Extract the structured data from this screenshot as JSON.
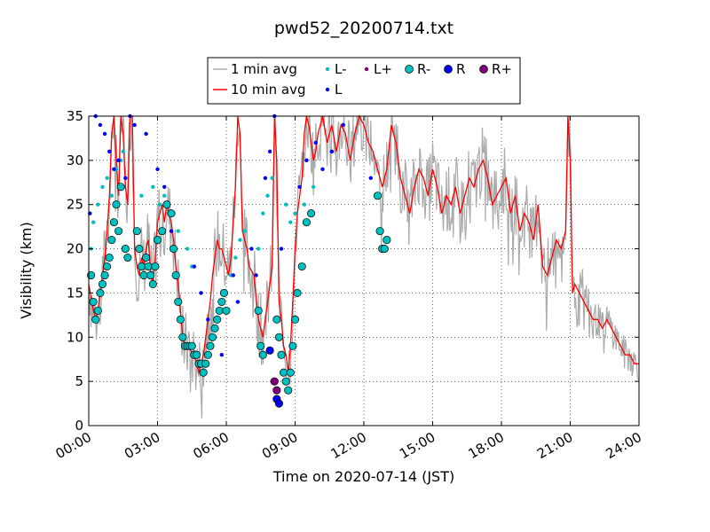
{
  "chart_data": {
    "type": "line",
    "title": "pwd52_20200714.txt",
    "xlabel": "Time on 2020-07-14 (JST)",
    "ylabel": "Visibility (km)",
    "xlim": [
      0,
      24
    ],
    "ylim": [
      0,
      35
    ],
    "x_tick_values": [
      0,
      3,
      6,
      9,
      12,
      15,
      18,
      21,
      24
    ],
    "x_tick_labels": [
      "00:00",
      "03:00",
      "06:00",
      "09:00",
      "12:00",
      "15:00",
      "18:00",
      "21:00",
      "24:00"
    ],
    "y_ticks": [
      0,
      5,
      10,
      15,
      20,
      25,
      30,
      35
    ],
    "grid": true,
    "legend_position": "top-center",
    "legend": [
      {
        "label": "1 min avg",
        "kind": "line",
        "color": "#aaaaaa"
      },
      {
        "label": "10 min avg",
        "kind": "line",
        "color": "#ff0000"
      },
      {
        "label": "L-",
        "kind": "dot",
        "color": "#00bfbf"
      },
      {
        "label": "L",
        "kind": "dot",
        "color": "#0000ff"
      },
      {
        "label": "L+",
        "kind": "dot",
        "color": "#7f007f"
      },
      {
        "label": "R-",
        "kind": "circle",
        "color": "#00bfbf"
      },
      {
        "label": "R",
        "kind": "circle",
        "color": "#0000ff"
      },
      {
        "label": "R+",
        "kind": "circle",
        "color": "#7f007f"
      }
    ],
    "series": [
      {
        "name": "10 min avg",
        "color": "#ff0000",
        "x": [
          0.0,
          0.2,
          0.3,
          0.4,
          0.5,
          0.6,
          0.7,
          0.8,
          0.9,
          1.0,
          1.1,
          1.2,
          1.3,
          1.4,
          1.5,
          1.6,
          1.7,
          1.8,
          1.9,
          2.0,
          2.1,
          2.2,
          2.3,
          2.4,
          2.5,
          2.6,
          2.7,
          2.8,
          2.9,
          3.0,
          3.1,
          3.2,
          3.3,
          3.4,
          3.5,
          3.6,
          3.7,
          3.8,
          3.9,
          4.0,
          4.1,
          4.2,
          4.3,
          4.4,
          4.5,
          4.6,
          4.7,
          4.8,
          4.9,
          5.0,
          5.1,
          5.2,
          5.3,
          5.4,
          5.5,
          5.6,
          5.7,
          5.8,
          5.9,
          6.0,
          6.1,
          6.2,
          6.3,
          6.4,
          6.5,
          6.6,
          6.7,
          6.8,
          6.9,
          7.0,
          7.2,
          7.4,
          7.6,
          7.8,
          8.0,
          8.1,
          8.2,
          8.3,
          8.4,
          8.5,
          8.6,
          8.7,
          8.8,
          8.9,
          9.0,
          9.1,
          9.2,
          9.3,
          9.4,
          9.5,
          9.6,
          9.7,
          9.8,
          9.9,
          10.0,
          10.2,
          10.4,
          10.6,
          10.8,
          11.0,
          11.2,
          11.4,
          11.6,
          11.8,
          12.0,
          12.2,
          12.4,
          12.6,
          12.8,
          13.0,
          13.2,
          13.4,
          13.6,
          13.8,
          14.0,
          14.2,
          14.4,
          14.6,
          14.8,
          15.0,
          15.2,
          15.4,
          15.6,
          15.8,
          16.0,
          16.2,
          16.4,
          16.6,
          16.8,
          17.0,
          17.2,
          17.4,
          17.6,
          17.8,
          18.0,
          18.2,
          18.4,
          18.6,
          18.8,
          19.0,
          19.2,
          19.4,
          19.6,
          19.8,
          20.0,
          20.2,
          20.4,
          20.6,
          20.8,
          20.9,
          21.0,
          21.1,
          21.2,
          21.4,
          21.6,
          21.8,
          22.0,
          22.2,
          22.4,
          22.6,
          22.8,
          23.0,
          23.2,
          23.4,
          23.6,
          23.8,
          24.0
        ],
        "y": [
          16,
          13,
          12,
          13,
          15,
          17,
          19,
          22,
          26,
          33,
          35,
          30,
          26,
          35,
          33,
          27,
          25,
          35,
          35,
          20,
          18,
          17,
          19,
          18,
          20,
          21,
          17,
          16,
          19,
          23,
          24,
          25,
          23,
          25,
          24,
          23,
          21,
          18,
          16,
          13,
          10,
          9,
          9,
          9,
          8,
          8,
          7,
          6,
          7,
          8,
          10,
          12,
          14,
          17,
          19,
          21,
          20,
          20,
          19,
          18,
          17,
          19,
          23,
          27,
          35,
          33,
          22,
          21,
          20,
          18,
          17,
          12,
          10,
          14,
          18,
          35,
          30,
          14,
          12,
          9,
          8,
          6,
          9,
          14,
          20,
          24,
          26,
          28,
          33,
          35,
          34,
          32,
          30,
          31,
          33,
          35,
          32,
          34,
          31,
          34,
          33,
          30,
          33,
          36,
          34,
          32,
          31,
          29,
          27,
          29,
          34,
          32,
          28,
          26,
          24,
          27,
          29,
          28,
          26,
          29,
          27,
          24,
          26,
          25,
          27,
          24,
          26,
          28,
          27,
          29,
          30,
          28,
          25,
          26,
          27,
          28,
          24,
          26,
          22,
          24,
          23,
          21,
          25,
          18,
          17,
          19,
          21,
          20,
          22,
          36,
          30,
          15,
          16,
          15,
          14,
          13,
          12,
          12,
          11,
          12,
          11,
          10,
          9,
          8,
          8,
          7,
          7
        ]
      },
      {
        "name": "1 min avg",
        "color": "#aaaaaa",
        "note": "approximate envelope of the noisy 1-minute series (plotted around the 10 min avg)"
      }
    ],
    "markers": {
      "R-": {
        "x": [
          0.1,
          0.2,
          0.3,
          0.4,
          0.5,
          0.6,
          0.7,
          0.8,
          0.9,
          1.0,
          1.1,
          1.2,
          1.3,
          1.4,
          1.6,
          1.7,
          2.1,
          2.2,
          2.3,
          2.4,
          2.5,
          2.6,
          2.7,
          2.8,
          2.9,
          3.0,
          3.2,
          3.4,
          3.6,
          3.7,
          3.8,
          3.9,
          4.0,
          4.1,
          4.2,
          4.3,
          4.4,
          4.5,
          4.6,
          4.7,
          4.8,
          4.9,
          5.0,
          5.1,
          5.2,
          5.3,
          5.4,
          5.5,
          5.6,
          5.7,
          5.8,
          5.9,
          6.0,
          7.4,
          7.5,
          7.6,
          8.2,
          8.3,
          8.4,
          8.5,
          8.6,
          8.7,
          8.8,
          8.9,
          9.0,
          9.1,
          9.3,
          9.5,
          9.7,
          12.6,
          12.7,
          12.8,
          12.9,
          13.0
        ],
        "y": [
          17,
          14,
          12,
          13,
          15,
          16,
          17,
          18,
          19,
          21,
          23,
          25,
          22,
          27,
          20,
          19,
          22,
          20,
          18,
          17,
          19,
          18,
          17,
          16,
          18,
          21,
          22,
          25,
          24,
          20,
          17,
          14,
          12,
          10,
          9,
          9,
          9,
          9,
          8,
          8,
          7,
          7,
          6,
          7,
          8,
          9,
          10,
          11,
          12,
          13,
          14,
          15,
          13,
          13,
          9,
          8,
          12,
          10,
          8,
          6,
          5,
          4,
          6,
          9,
          12,
          15,
          18,
          23,
          24,
          26,
          22,
          20,
          20,
          21
        ]
      },
      "R": {
        "x": [
          7.9,
          8.2,
          8.3
        ],
        "y": [
          8.5,
          3,
          2.5
        ]
      },
      "R+": {
        "x": [
          8.1,
          8.2
        ],
        "y": [
          5,
          4
        ]
      },
      "L-": {
        "x": [
          0.1,
          0.2,
          0.4,
          0.6,
          0.8,
          1.0,
          1.2,
          1.4,
          1.5,
          2.3,
          2.8,
          3.1,
          3.3,
          3.5,
          3.9,
          4.3,
          4.5,
          6.0,
          6.2,
          6.4,
          6.6,
          6.8,
          7.4,
          7.6,
          7.8,
          8.0,
          8.6,
          8.8,
          9.0,
          9.4,
          9.8
        ],
        "y": [
          20,
          23,
          25,
          27,
          28,
          26,
          29,
          30,
          31,
          26,
          27,
          25,
          26,
          24,
          22,
          20,
          18,
          15,
          17,
          19,
          21,
          22,
          20,
          24,
          26,
          28,
          25,
          23,
          24,
          25,
          27
        ]
      },
      "L": {
        "x": [
          0.05,
          0.3,
          0.5,
          0.7,
          0.9,
          1.1,
          1.3,
          1.6,
          1.8,
          2.0,
          2.5,
          3.0,
          3.3,
          3.6,
          4.6,
          4.9,
          5.2,
          5.5,
          5.8,
          6.3,
          6.5,
          7.1,
          7.3,
          7.7,
          7.9,
          8.1,
          8.4,
          9.2,
          9.5,
          9.9,
          10.2,
          10.6,
          11.1,
          12.3
        ],
        "y": [
          24,
          35,
          34,
          33,
          31,
          29,
          30,
          28,
          35,
          34,
          33,
          29,
          27,
          22,
          18,
          15,
          12,
          10,
          8,
          17,
          14,
          20,
          17,
          28,
          31,
          35,
          20,
          27,
          30,
          32,
          29,
          31,
          34,
          28
        ]
      },
      "L+": {
        "x": [
          5.1
        ],
        "y": [
          7
        ]
      }
    }
  }
}
